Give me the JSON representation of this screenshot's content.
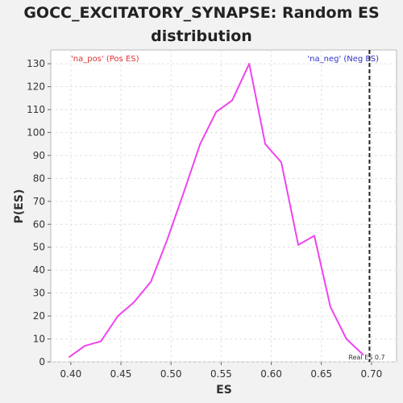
{
  "chart_data": {
    "type": "line",
    "title_line1": "GOCC_EXCITATORY_SYNAPSE: Random ES",
    "title_line2": "distribution",
    "xlabel": "ES",
    "ylabel": "P(ES)",
    "xlim": [
      0.38,
      0.725
    ],
    "ylim": [
      0,
      136
    ],
    "x_ticks": [
      0.4,
      0.45,
      0.5,
      0.55,
      0.6,
      0.65,
      0.7
    ],
    "x_tick_labels": [
      "0.40",
      "0.45",
      "0.50",
      "0.55",
      "0.60",
      "0.65",
      "0.70"
    ],
    "y_ticks": [
      0,
      10,
      20,
      30,
      40,
      50,
      60,
      70,
      80,
      90,
      100,
      110,
      120,
      130
    ],
    "grid": true,
    "series": [
      {
        "color": "#ee44ee",
        "x": [
          0.398,
          0.414,
          0.43,
          0.447,
          0.463,
          0.48,
          0.496,
          0.512,
          0.529,
          0.545,
          0.561,
          0.578,
          0.594,
          0.61,
          0.627,
          0.643,
          0.659,
          0.675,
          0.692
        ],
        "y": [
          2,
          7,
          9,
          20,
          26,
          35,
          53,
          73,
          95,
          109,
          114,
          130,
          95,
          87,
          51,
          55,
          24,
          10,
          3
        ]
      }
    ],
    "real_es": {
      "x": 0.698,
      "label": "Real ES 0.7"
    },
    "annotations": {
      "pos_label": "'na_pos' (Pos ES)",
      "pos_color": "#e03030",
      "neg_label": "'na_neg' (Neg ES)",
      "neg_color": "#3030d0"
    }
  }
}
